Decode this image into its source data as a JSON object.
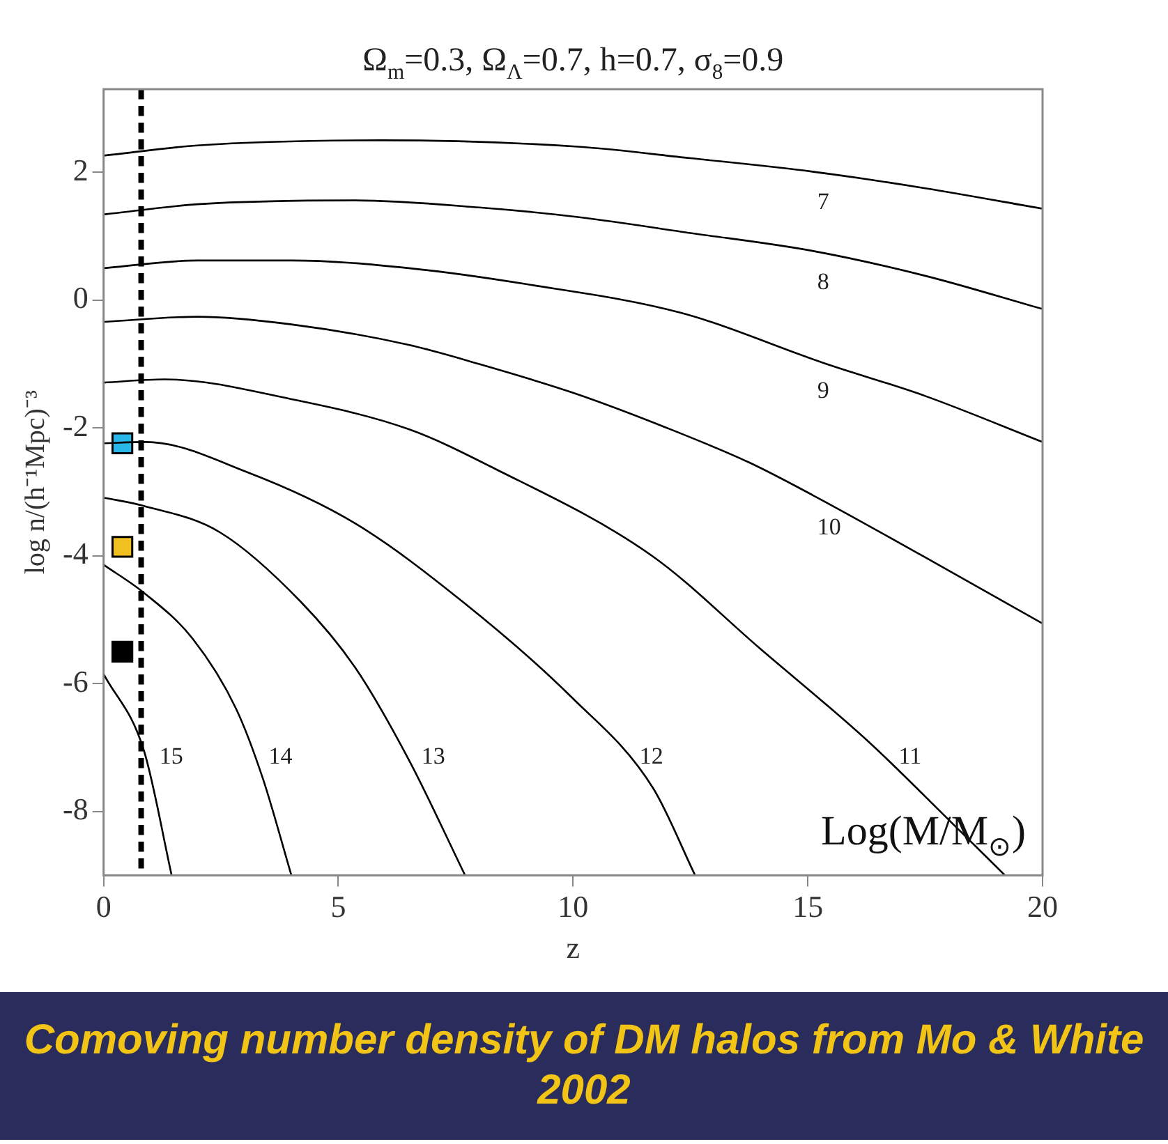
{
  "chart_data": {
    "type": "line",
    "title": "Ω$_{m}$=0.3, Ω$_{Λ}$=0.7, h=0.7, σ$_{8}$=0.9",
    "xlabel": "z",
    "ylabel": "log n/(h⁻¹Mpc)⁻³",
    "xlim": [
      0,
      20
    ],
    "xticks": [
      0,
      5,
      10,
      15,
      20
    ],
    "ylim": [
      -9,
      3.3
    ],
    "yticks": [
      -8,
      -6,
      -4,
      -2,
      0,
      2
    ],
    "grid": false,
    "legend": false,
    "marker": "none",
    "line_style": "solid",
    "series": [
      {
        "name": "7",
        "color": "#000000",
        "x": [
          0,
          2,
          5.9,
          10.1,
          12.5,
          15.1,
          17.5,
          20
        ],
        "values": [
          2.26,
          2.42,
          2.5,
          2.4,
          2.22,
          2.01,
          1.75,
          1.43
        ]
      },
      {
        "name": "8",
        "color": "#000000",
        "x": [
          0,
          2,
          5.35,
          8,
          10.1,
          12.5,
          15.1,
          17.5,
          20
        ],
        "values": [
          1.34,
          1.5,
          1.56,
          1.45,
          1.3,
          1.05,
          0.77,
          0.38,
          -0.14
        ]
      },
      {
        "name": "9",
        "color": "#000000",
        "x": [
          0,
          2,
          4,
          6.5,
          9,
          12.3,
          15.4,
          17.5,
          20
        ],
        "values": [
          0.5,
          0.62,
          0.62,
          0.5,
          0.25,
          -0.2,
          -1.0,
          -1.5,
          -2.22
        ]
      },
      {
        "name": "10",
        "color": "#000000",
        "x": [
          0,
          2,
          4,
          6.5,
          8,
          10,
          12,
          13.75,
          15.1,
          17.44,
          20
        ],
        "values": [
          -0.34,
          -0.26,
          -0.38,
          -0.7,
          -1.0,
          -1.45,
          -2.0,
          -2.54,
          -3.05,
          -4.0,
          -5.06
        ]
      },
      {
        "name": "11",
        "color": "#000000",
        "x": [
          0,
          1.3,
          4,
          6.5,
          8.23,
          11.68,
          13.98,
          16.28,
          18,
          19.2
        ],
        "values": [
          -1.29,
          -1.24,
          -1.55,
          -2.02,
          -2.6,
          -4.0,
          -5.45,
          -6.9,
          -8.13,
          -9
        ]
      },
      {
        "name": "12",
        "color": "#000000",
        "x": [
          0,
          0.9,
          3.05,
          5.35,
          7.65,
          9.95,
          11.7,
          12.6
        ],
        "values": [
          -2.24,
          -2.22,
          -2.69,
          -3.49,
          -4.72,
          -6.2,
          -7.63,
          -9
        ]
      },
      {
        "name": "13",
        "color": "#000000",
        "x": [
          0,
          0.86,
          2.47,
          4.2,
          5.35,
          6.5,
          7.7
        ],
        "values": [
          -3.09,
          -3.22,
          -3.63,
          -4.72,
          -5.74,
          -7.19,
          -9
        ]
      },
      {
        "name": "14",
        "color": "#000000",
        "x": [
          0,
          0.86,
          1.9,
          2.82,
          3.39,
          4.0
        ],
        "values": [
          -4.14,
          -4.58,
          -5.3,
          -6.39,
          -7.48,
          -9
        ]
      },
      {
        "name": "15",
        "color": "#000000",
        "x": [
          0,
          0.86,
          1.45
        ],
        "values": [
          -5.85,
          -7.05,
          -9
        ]
      },
      {
        "type": "scatter",
        "marker": "square",
        "x": [
          0.4,
          0.4,
          0.4
        ],
        "values": [
          -2.24,
          -3.86,
          -5.5
        ],
        "colors": [
          "#29b6e8",
          "#f0c020",
          "#000000"
        ]
      }
    ],
    "ref_lines": [
      {
        "axis": "x",
        "value": 0.8,
        "color": "#000000",
        "line_style": "dashed"
      }
    ],
    "annotations": [
      "Log(M/M$_{⊙}$)",
      "Comoving number density of DM halos from Mo & White 2002"
    ]
  }
}
